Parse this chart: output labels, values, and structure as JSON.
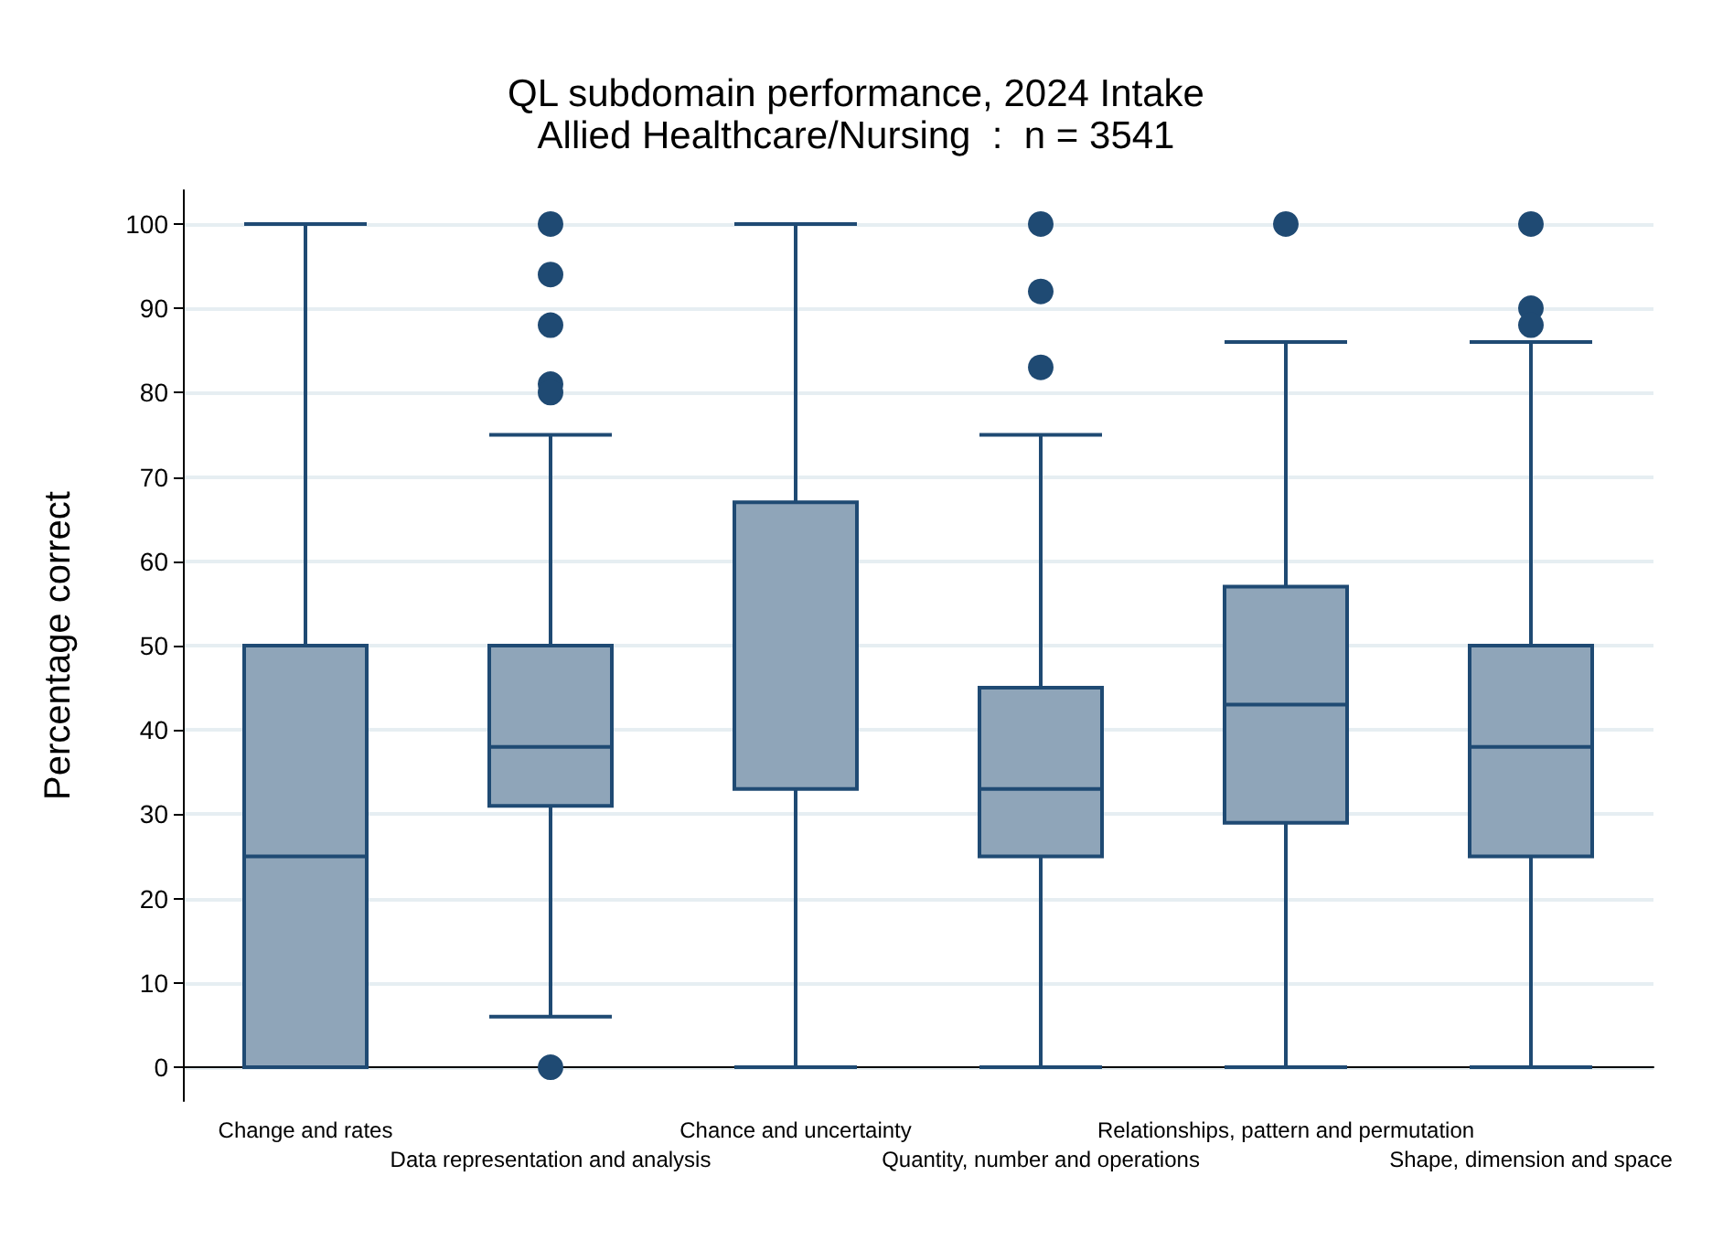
{
  "chart_data": {
    "type": "box",
    "title": "QL subdomain performance, 2024 Intake",
    "subtitle": "Allied Healthcare/Nursing  :  n = 3541",
    "ylabel": "Percentage correct",
    "categories": [
      "Change and rates",
      "Data representation and analysis",
      "Chance and uncertainty",
      "Quantity, number and operations",
      "Relationships, pattern and permutation",
      "Shape, dimension and space"
    ],
    "series": [
      {
        "color": "#8fa5b9",
        "boxes": [
          {
            "low": 0,
            "q1": 0,
            "median": 25,
            "q3": 50,
            "high": 100
          },
          {
            "low": 6,
            "q1": 31,
            "median": 38,
            "q3": 50,
            "high": 75,
            "outliers": [
              100,
              94,
              88,
              81,
              80,
              0
            ]
          },
          {
            "low": 0,
            "q1": 33,
            "median": 33,
            "q3": 67,
            "high": 100
          },
          {
            "low": 0,
            "q1": 25,
            "median": 33,
            "q3": 45,
            "high": 75,
            "outliers": [
              100,
              92,
              83
            ]
          },
          {
            "low": 0,
            "q1": 29,
            "median": 43,
            "q3": 57,
            "high": 86,
            "outliers": [
              100
            ]
          },
          {
            "low": 0,
            "q1": 25,
            "median": 38,
            "q3": 50,
            "high": 86,
            "outliers": [
              100,
              90,
              88
            ]
          }
        ]
      }
    ],
    "ylim": [
      -4,
      104
    ],
    "yticks": [
      0,
      10,
      20,
      30,
      40,
      50,
      60,
      70,
      80,
      90,
      100
    ],
    "grid": "y",
    "marker": "circle"
  }
}
